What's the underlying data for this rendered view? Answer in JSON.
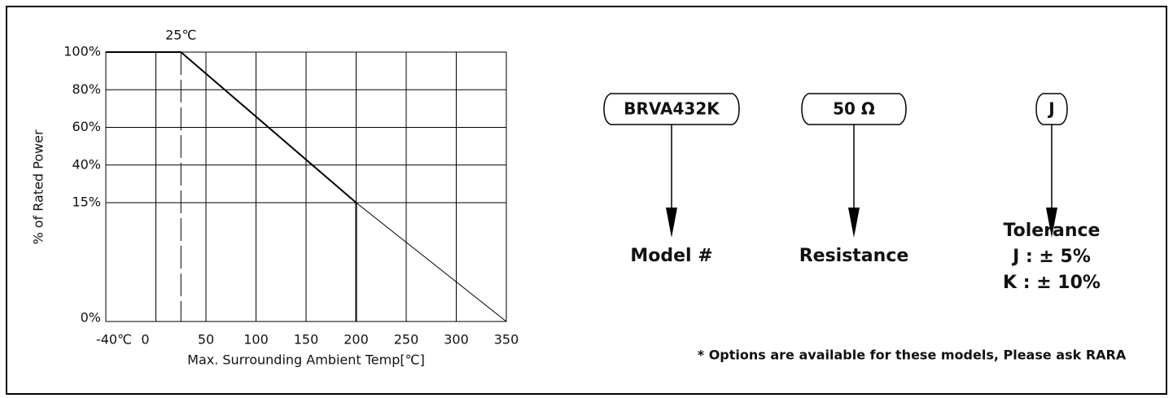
{
  "chart_data": {
    "type": "line",
    "xlabel": "Max. Surrounding Ambient Temp[℃]",
    "ylabel": "% of Rated Power",
    "xlim": [
      -40,
      350
    ],
    "xticks": [
      {
        "value": -40,
        "label": "-40℃"
      },
      0,
      50,
      100,
      150,
      200,
      250,
      300,
      350
    ],
    "ylim": [
      0,
      100
    ],
    "yticks": [
      {
        "value": 100,
        "label": "100%"
      },
      {
        "value": 80,
        "label": "80%"
      },
      {
        "value": 60,
        "label": "60%"
      },
      {
        "value": 40,
        "label": "40%"
      },
      {
        "value": 15,
        "label": "15%"
      },
      {
        "value": 0,
        "label": "0%"
      }
    ],
    "grid": true,
    "series": [
      {
        "color": "#000000",
        "width": 2,
        "x": [
          -40,
          25,
          200
        ],
        "values": [
          100,
          100,
          15
        ]
      },
      {
        "color": "#000000",
        "width": 1,
        "x": [
          200,
          350
        ],
        "values": [
          15,
          0
        ]
      }
    ],
    "reference_line": {
      "x": 25,
      "label": "25℃"
    }
  },
  "diagram": {
    "codes": [
      {
        "code": "BRVA432K",
        "label": [
          "Model #"
        ]
      },
      {
        "code": "50 Ω",
        "label": [
          "Resistance"
        ]
      },
      {
        "code": "J",
        "label": [
          "Tolerance",
          "J : ± 5%",
          "K : ± 10%"
        ]
      }
    ],
    "note": "* Options are available for these models, Please ask RARA"
  }
}
